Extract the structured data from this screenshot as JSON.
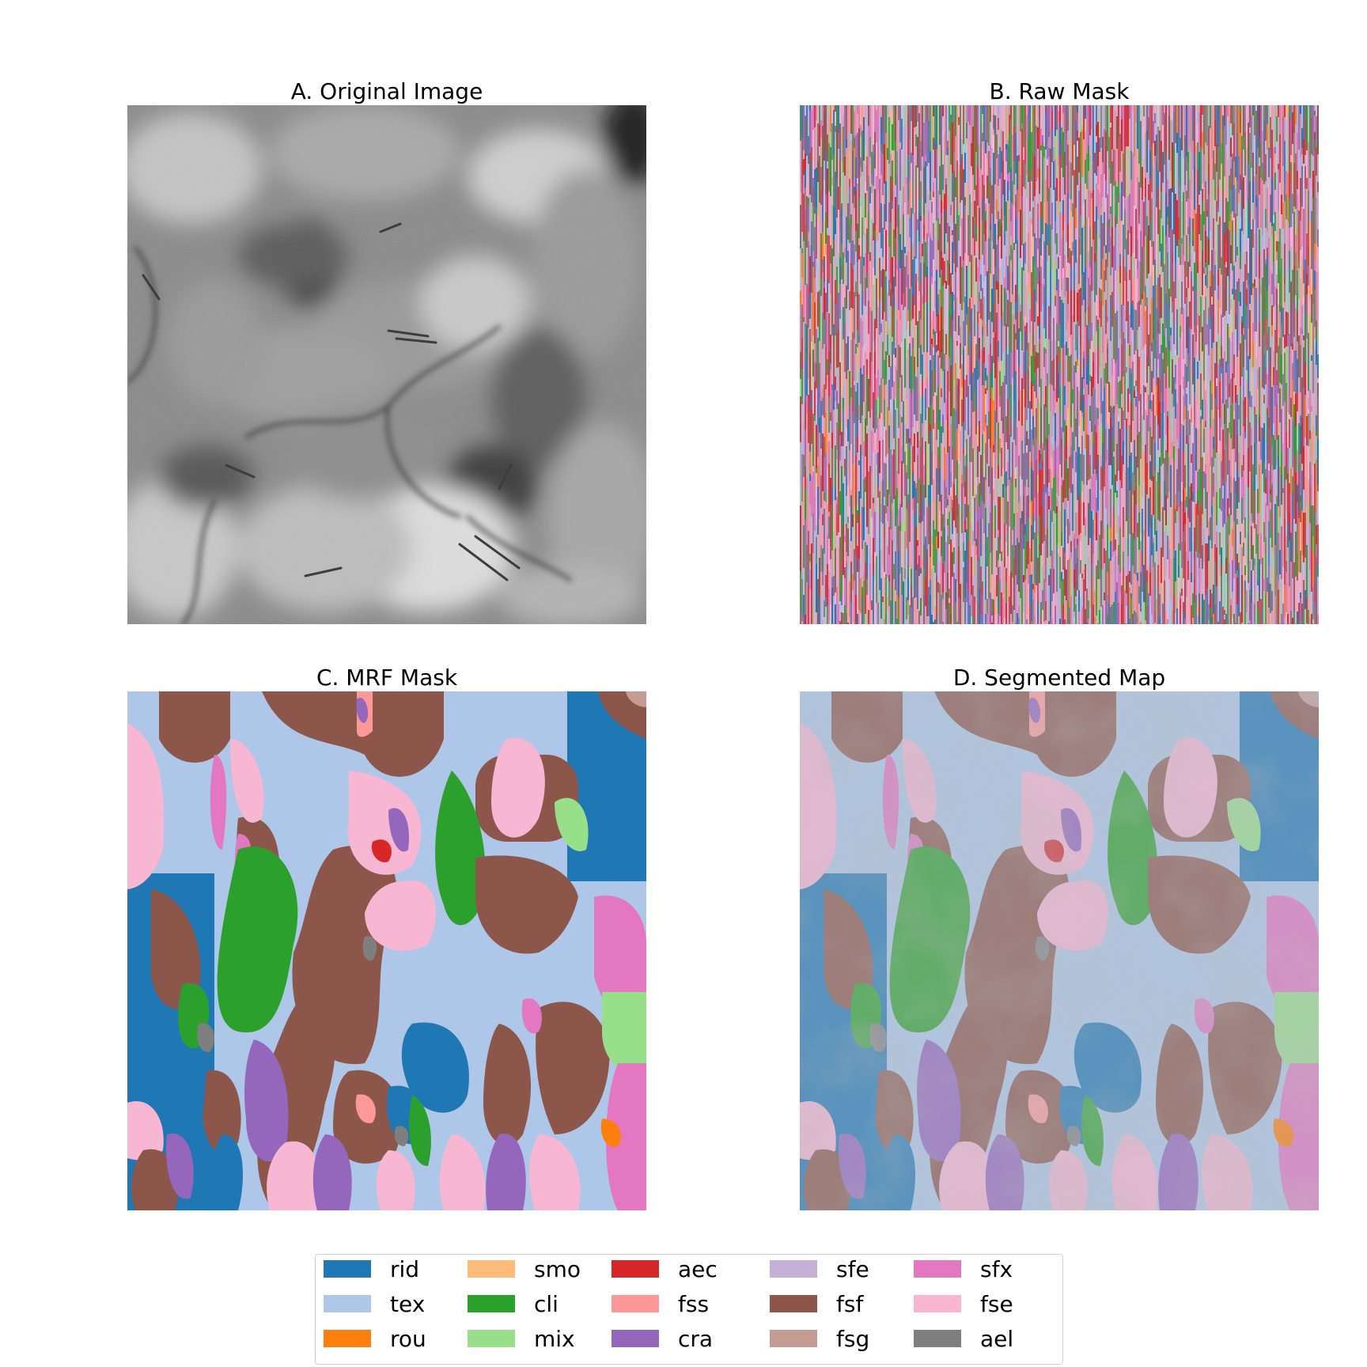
{
  "panels": {
    "a": {
      "title": "A. Original Image"
    },
    "b": {
      "title": "B. Raw Mask"
    },
    "c": {
      "title": "C. MRF Mask"
    },
    "d": {
      "title": "D. Segmented Map"
    }
  },
  "legend": {
    "items": [
      {
        "label": "rid",
        "color": "#1f77b4"
      },
      {
        "label": "tex",
        "color": "#aec7e8"
      },
      {
        "label": "rou",
        "color": "#ff7f0e"
      },
      {
        "label": "smo",
        "color": "#ffbb78"
      },
      {
        "label": "cli",
        "color": "#2ca02c"
      },
      {
        "label": "mix",
        "color": "#98df8a"
      },
      {
        "label": "aec",
        "color": "#d62728"
      },
      {
        "label": "fss",
        "color": "#ff9896"
      },
      {
        "label": "cra",
        "color": "#9467bd"
      },
      {
        "label": "sfe",
        "color": "#c5b0d5"
      },
      {
        "label": "fsf",
        "color": "#8c564b"
      },
      {
        "label": "fsg",
        "color": "#c49c94"
      },
      {
        "label": "sfx",
        "color": "#e377c2"
      },
      {
        "label": "fse",
        "color": "#f7b6d2"
      },
      {
        "label": "ael",
        "color": "#7f7f7f"
      }
    ]
  }
}
